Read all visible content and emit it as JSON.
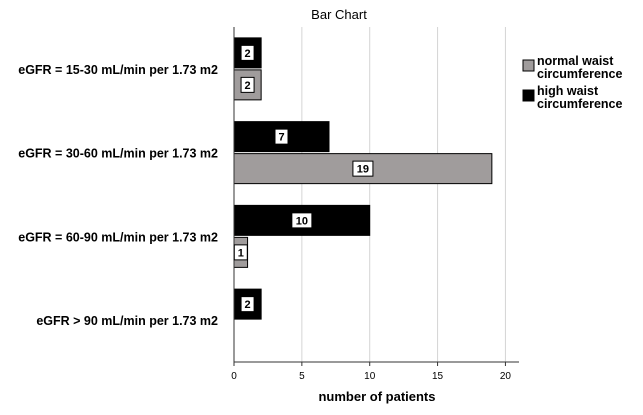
{
  "chart_data": {
    "type": "bar",
    "orientation": "horizontal",
    "title": "Bar Chart",
    "xlabel": "number of patients",
    "ylabel": "",
    "xlim": [
      0,
      21
    ],
    "xticks": [
      0,
      5,
      10,
      15,
      20
    ],
    "grid": "vertical",
    "legend_position": "right",
    "categories": [
      "eGFR = 15-30 mL/min per 1.73 m2",
      "eGFR = 30-60 mL/min per 1.73 m2",
      "eGFR = 60-90 mL/min per 1.73 m2",
      "eGFR > 90 mL/min per 1.73 m2"
    ],
    "series": [
      {
        "name": "high waist circumference",
        "color": "#000000",
        "values": [
          2,
          7,
          10,
          2
        ]
      },
      {
        "name": "normal waist circumference",
        "color": "#a09c9c",
        "values": [
          2,
          19,
          1,
          null
        ]
      }
    ],
    "legend": [
      {
        "line1": "normal waist",
        "line2": "circumference",
        "color": "#a09c9c"
      },
      {
        "line1": "high waist",
        "line2": "circumference",
        "color": "#000000"
      }
    ]
  }
}
